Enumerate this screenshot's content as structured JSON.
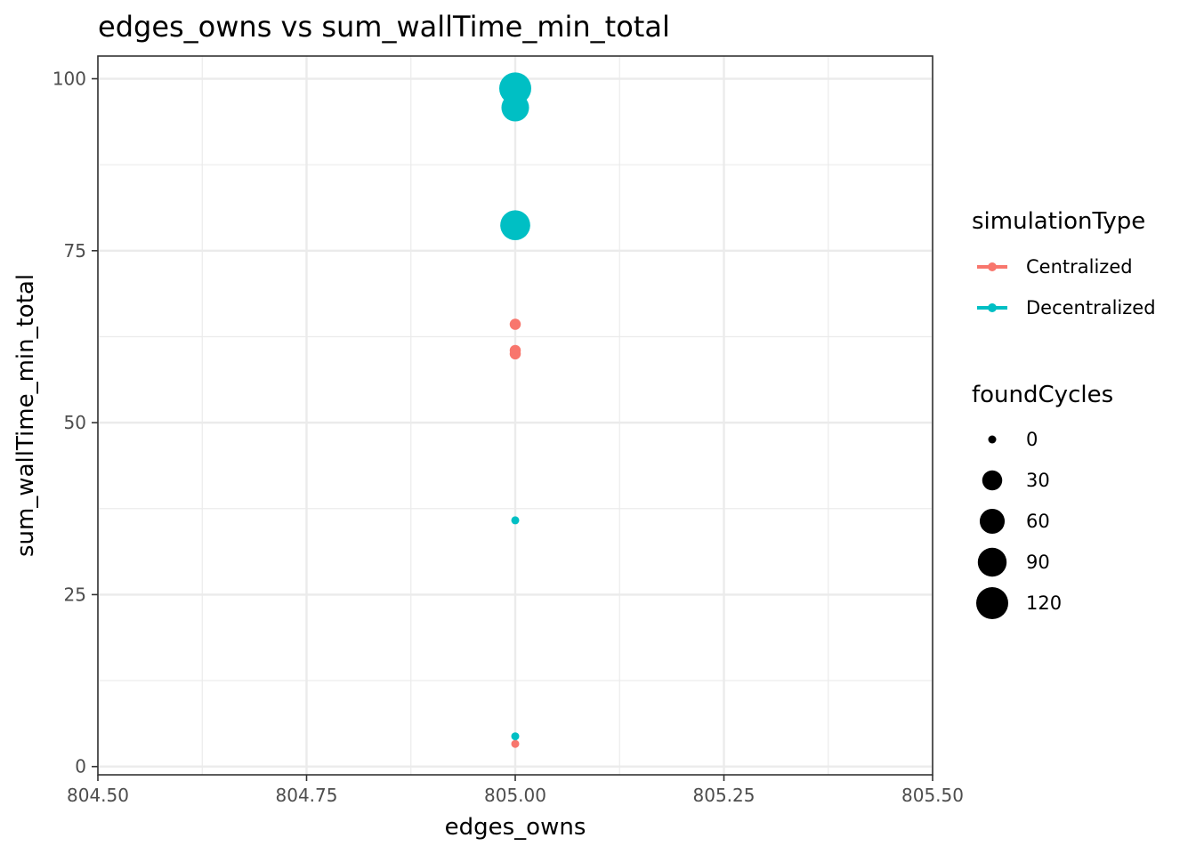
{
  "chart_data": {
    "type": "scatter",
    "title": "edges_owns  vs  sum_wallTime_min_total",
    "xlabel": "edges_owns",
    "ylabel": "sum_wallTime_min_total",
    "xlim": [
      804.5,
      805.5
    ],
    "ylim": [
      -1.2,
      103.3
    ],
    "x_ticks": [
      "804.50",
      "804.75",
      "805.00",
      "805.25",
      "805.50"
    ],
    "x_tick_values": [
      804.5,
      804.75,
      805.0,
      805.25,
      805.5
    ],
    "y_ticks": [
      "0",
      "25",
      "50",
      "75",
      "100"
    ],
    "y_tick_values": [
      0,
      25,
      50,
      75,
      100
    ],
    "grid": true,
    "legend_position": "right",
    "color_legend": {
      "title": "simulationType",
      "entries": [
        {
          "name": "Centralized",
          "color": "#F8766D"
        },
        {
          "name": "Decentralized",
          "color": "#00BFC4"
        }
      ]
    },
    "size_legend": {
      "title": "foundCycles",
      "values": [
        0,
        30,
        60,
        90,
        120
      ],
      "labels": [
        "0",
        "30",
        "60",
        "90",
        "120"
      ]
    },
    "series": [
      {
        "name": "Centralized",
        "color": "#F8766D",
        "points": [
          {
            "x": 805.0,
            "y": 64.3,
            "size": 2
          },
          {
            "x": 805.0,
            "y": 60.5,
            "size": 2
          },
          {
            "x": 805.0,
            "y": 60.0,
            "size": 2
          },
          {
            "x": 805.0,
            "y": 3.3,
            "size": 0
          }
        ]
      },
      {
        "name": "Decentralized",
        "color": "#00BFC4",
        "points": [
          {
            "x": 805.0,
            "y": 98.6,
            "size": 120
          },
          {
            "x": 805.0,
            "y": 95.8,
            "size": 80
          },
          {
            "x": 805.0,
            "y": 78.7,
            "size": 100
          },
          {
            "x": 805.0,
            "y": 35.8,
            "size": 0
          },
          {
            "x": 805.0,
            "y": 4.4,
            "size": 0
          }
        ]
      }
    ]
  }
}
